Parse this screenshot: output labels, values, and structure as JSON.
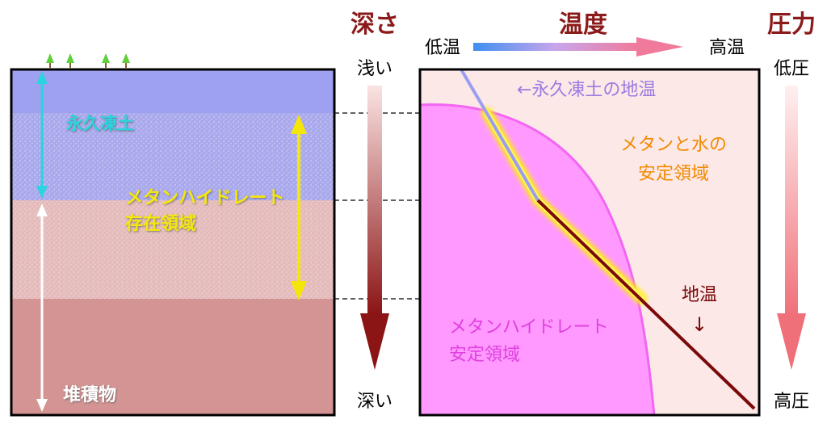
{
  "headers": {
    "depth": "深さ",
    "temperature": "温度",
    "pressure": "圧力"
  },
  "temperature_axis": {
    "low": "低温",
    "high": "高温"
  },
  "depth_axis": {
    "shallow": "浅い",
    "deep": "深い"
  },
  "pressure_axis": {
    "low": "低圧",
    "high": "高圧"
  },
  "left_panel": {
    "permafrost_label": "永久凍土",
    "hydrate_zone_label_line1": "メタンハイドレート",
    "hydrate_zone_label_line2": "存在領域",
    "sediment_label": "堆積物"
  },
  "right_panel": {
    "permafrost_temp_label": "←永久凍土の地温",
    "methane_water_label_line1": "メタンと水の",
    "methane_water_label_line2": "安定領域",
    "geotherm_label": "地温",
    "geotherm_arrow": "↓",
    "hydrate_stable_label_line1": "メタンハイドレート",
    "hydrate_stable_label_line2": "安定領域"
  },
  "colors": {
    "header_text": "#8b1a1a",
    "permafrost_text": "#2ad4e0",
    "permafrost_arrow": "#2ad4e0",
    "hydrate_zone_text": "#f5e60a",
    "sediment_text": "#ffffff",
    "orange_text": "#f08a00",
    "magenta_text": "#e040e0",
    "lavender_text": "#9a7be0",
    "dark_red": "#7a0a0a",
    "permafrost_band": "#9ea0f0",
    "upper_sediment_band": "#e4baba",
    "lower_sediment_band": "#d49494",
    "stable_region_fill": "#ff99ff",
    "stable_region_edge": "#f266f2",
    "right_background": "#fde8e8"
  },
  "icons": [
    "tree-icon",
    "double-arrow-icon",
    "gradient-arrow-icon",
    "dashed-guide-line"
  ]
}
